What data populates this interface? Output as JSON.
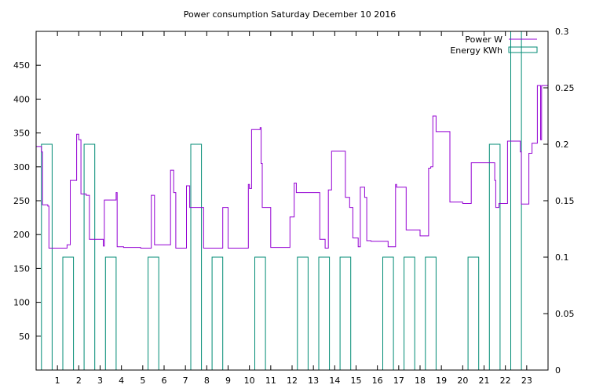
{
  "chart_data": {
    "type": "line",
    "title": "Power consumption Saturday December 10 2016",
    "xlabel": "",
    "ylabel": "",
    "y2label": "",
    "xlim": [
      0,
      24
    ],
    "ylim": [
      0,
      500
    ],
    "y2lim": [
      0,
      0.3
    ],
    "x_ticks": [
      1,
      2,
      3,
      4,
      5,
      6,
      7,
      8,
      9,
      10,
      11,
      12,
      13,
      14,
      15,
      16,
      17,
      18,
      19,
      20,
      21,
      22,
      23
    ],
    "y_ticks": [
      50,
      100,
      150,
      200,
      250,
      300,
      350,
      400,
      450
    ],
    "y2_ticks": [
      0,
      0.05,
      0.1,
      0.15,
      0.2,
      0.25,
      0.3
    ],
    "grid": false,
    "legend_position": "top-right",
    "series": [
      {
        "name": "Power W",
        "axis": "left",
        "color": "#9400d3",
        "style": "steps",
        "x": [
          0,
          0.25,
          0.3,
          0.55,
          0.6,
          1.3,
          1.45,
          1.6,
          1.9,
          2.0,
          2.1,
          2.35,
          2.5,
          3.05,
          3.15,
          3.2,
          3.65,
          3.75,
          3.8,
          4.0,
          4.1,
          4.5,
          4.9,
          5.4,
          5.45,
          5.55,
          6.3,
          6.4,
          6.45,
          6.55,
          6.65,
          7.05,
          7.2,
          7.85,
          8.2,
          8.5,
          8.7,
          8.75,
          9.0,
          9.5,
          9.6,
          9.95,
          10.0,
          10.1,
          10.5,
          10.55,
          10.6,
          11.0,
          11.5,
          11.6,
          11.7,
          11.9,
          12.1,
          12.2,
          13.3,
          13.4,
          13.55,
          13.7,
          13.85,
          14.5,
          14.7,
          14.85,
          15.1,
          15.2,
          15.25,
          15.4,
          15.5,
          15.7,
          15.8,
          16.0,
          16.5,
          16.85,
          16.9,
          17.35,
          17.4,
          18.0,
          18.1,
          18.4,
          18.5,
          18.6,
          18.7,
          18.75,
          19.4,
          19.5,
          20.0,
          20.1,
          20.4,
          20.5,
          21.5,
          21.55,
          21.7,
          22.0,
          22.1,
          22.2,
          22.7,
          22.75,
          23.0,
          23.1,
          23.25,
          23.4,
          23.5,
          23.65,
          23.7,
          23.9
        ],
        "y": [
          330,
          322,
          244,
          242,
          180,
          180,
          185,
          280,
          348,
          340,
          260,
          258,
          193,
          193,
          183,
          251,
          251,
          262,
          182,
          182,
          181,
          181,
          180,
          258,
          258,
          185,
          295,
          295,
          262,
          180,
          180,
          272,
          240,
          180,
          180,
          180,
          180,
          240,
          180,
          180,
          180,
          274,
          268,
          355,
          358,
          305,
          240,
          181,
          181,
          181,
          181,
          226,
          276,
          262,
          193,
          193,
          180,
          266,
          323,
          255,
          240,
          195,
          182,
          270,
          270,
          255,
          191,
          190,
          190,
          190,
          182,
          274,
          270,
          207,
          207,
          198,
          198,
          298,
          300,
          375,
          375,
          352,
          248,
          248,
          246,
          246,
          306,
          306,
          280,
          240,
          246,
          246,
          338,
          338,
          322,
          245,
          245,
          320,
          335,
          335,
          420,
          340,
          420,
          420
        ]
      },
      {
        "name": "Energy KWh",
        "axis": "right",
        "color": "#008b74",
        "style": "bars",
        "x": [
          0.5,
          1.5,
          2.5,
          3.5,
          4.5,
          5.5,
          6.5,
          7.5,
          8.5,
          9.5,
          10.5,
          11.5,
          12.5,
          13.5,
          14.5,
          15.5,
          16.5,
          17.5,
          18.5,
          19.5,
          20.5,
          21.5,
          22.5
        ],
        "width": 0.5,
        "y": [
          0.2,
          0.1,
          0.2,
          0.1,
          0,
          0.1,
          0,
          0.2,
          0.1,
          0,
          0.1,
          0,
          0.1,
          0.1,
          0.1,
          0,
          0.1,
          0.1,
          0.1,
          0,
          0.1,
          0.2,
          0.3
        ]
      }
    ]
  }
}
